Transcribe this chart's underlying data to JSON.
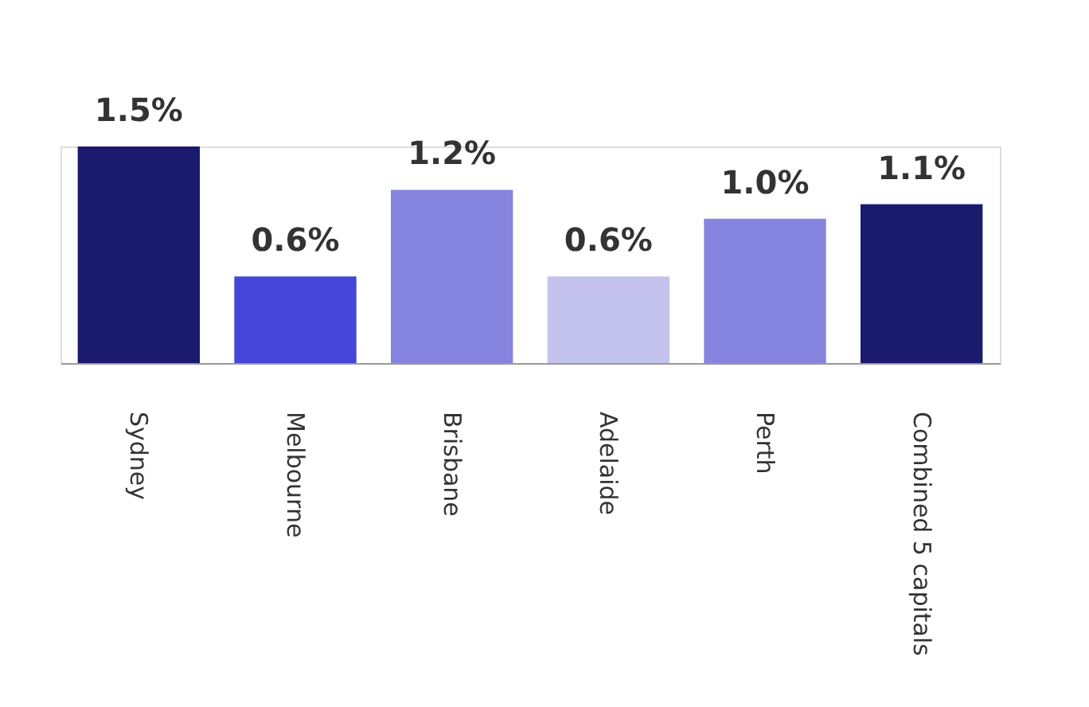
{
  "chart_data": {
    "type": "bar",
    "categories": [
      "Sydney",
      "Melbourne",
      "Brisbane",
      "Adelaide",
      "Perth",
      "Combined 5 capitals"
    ],
    "values": [
      1.5,
      0.6,
      1.2,
      0.6,
      1.0,
      1.1
    ],
    "colors": [
      "#1a1a6e",
      "#4646d8",
      "#8585e0",
      "#c3c3ee",
      "#8585e0",
      "#1a1a6e"
    ],
    "value_labels": [
      "1.5%",
      "0.6%",
      "1.2%",
      "0.6%",
      "1.0%",
      "1.1%"
    ],
    "grid": false
  }
}
